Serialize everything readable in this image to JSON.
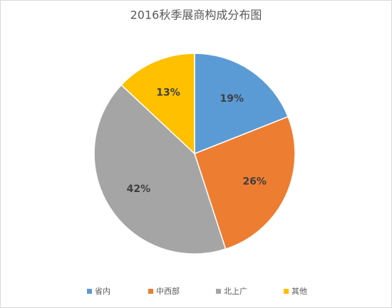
{
  "chart_data": {
    "type": "pie",
    "title": "2016秋季展商构成分布图",
    "categories": [
      "省内",
      "中西部",
      "北上广",
      "其他"
    ],
    "values": [
      19,
      26,
      42,
      13
    ],
    "value_labels": [
      "19%",
      "26%",
      "42%",
      "13%"
    ],
    "colors": [
      "#5b9bd5",
      "#ed7d31",
      "#a5a5a5",
      "#ffc000"
    ],
    "legend": "bottom"
  }
}
